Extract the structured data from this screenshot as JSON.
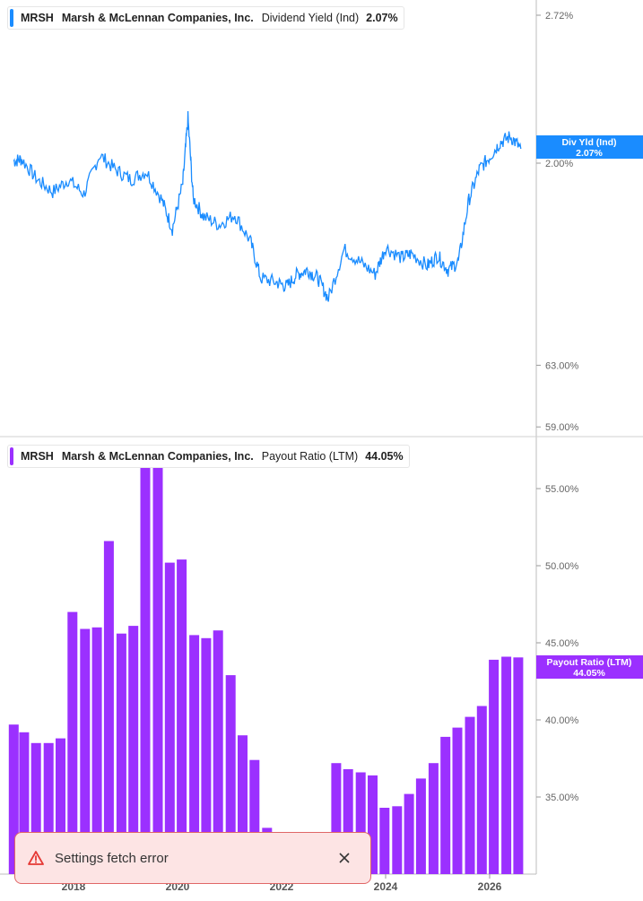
{
  "colors": {
    "yield_line": "#1a8cff",
    "payout_bar": "#9b30ff",
    "axis": "#999999",
    "error": "#e53935"
  },
  "top_legend": {
    "ticker": "MRSH",
    "company": "Marsh & McLennan Companies, Inc.",
    "metric": "Dividend Yield (Ind)",
    "value": "2.07%"
  },
  "bottom_legend": {
    "ticker": "MRSH",
    "company": "Marsh & McLennan Companies, Inc.",
    "metric": "Payout Ratio (LTM)",
    "value": "44.05%"
  },
  "top_badge": {
    "label": "Div Yld (Ind)",
    "value": "2.07%"
  },
  "bottom_badge": {
    "label": "Payout Ratio (LTM)",
    "value": "44.05%"
  },
  "toast": {
    "message": "Settings fetch error",
    "icon": "warning-triangle-icon",
    "close_icon": "close-icon"
  },
  "chart_data": [
    {
      "type": "line",
      "series": [
        {
          "name": "Div Yld (Ind)",
          "x": [
            2016.85,
            2017.0,
            2017.3,
            2017.6,
            2017.9,
            2018.2,
            2018.5,
            2018.8,
            2019.1,
            2019.4,
            2019.7,
            2019.9,
            2020.1,
            2020.2,
            2020.3,
            2020.5,
            2020.8,
            2021.1,
            2021.4,
            2021.6,
            2021.9,
            2022.1,
            2022.3,
            2022.5,
            2022.7,
            2022.9,
            2023.2,
            2023.5,
            2023.8,
            2024.0,
            2024.3,
            2024.5,
            2024.8,
            2025.0,
            2025.2,
            2025.4,
            2025.6,
            2025.8,
            2026.0,
            2026.2,
            2026.4,
            2026.6
          ],
          "y": [
            2.01,
            2.02,
            1.92,
            1.86,
            1.92,
            1.85,
            2.04,
            1.97,
            1.92,
            1.96,
            1.82,
            1.68,
            1.9,
            2.22,
            1.83,
            1.74,
            1.7,
            1.75,
            1.62,
            1.44,
            1.42,
            1.4,
            1.46,
            1.48,
            1.44,
            1.34,
            1.58,
            1.52,
            1.46,
            1.59,
            1.54,
            1.56,
            1.5,
            1.55,
            1.48,
            1.52,
            1.82,
            1.97,
            2.03,
            2.1,
            2.13,
            2.07
          ]
        }
      ],
      "ylabel": "",
      "yticks": [
        "2.72%",
        "2.00%"
      ],
      "xticks": [
        "2018",
        "2020",
        "2022",
        "2024",
        "2026"
      ]
    },
    {
      "type": "bar",
      "x": [
        2016.85,
        2017.05,
        2017.28,
        2017.52,
        2017.75,
        2017.98,
        2018.22,
        2018.45,
        2018.68,
        2018.92,
        2019.15,
        2019.38,
        2019.62,
        2019.85,
        2020.08,
        2020.32,
        2020.55,
        2020.78,
        2021.02,
        2021.25,
        2021.48,
        2021.72,
        2023.05,
        2023.28,
        2023.52,
        2023.75,
        2023.98,
        2024.22,
        2024.45,
        2024.68,
        2024.92,
        2025.15,
        2025.38,
        2025.62,
        2025.85,
        2026.08,
        2026.32,
        2026.55
      ],
      "series": [
        {
          "name": "Payout Ratio (LTM)",
          "values": [
            39.7,
            39.2,
            38.5,
            38.5,
            38.8,
            47.0,
            45.9,
            46.0,
            51.6,
            45.6,
            46.1,
            56.6,
            57.0,
            50.2,
            50.4,
            45.5,
            45.3,
            45.8,
            42.9,
            39.0,
            37.4,
            33.0,
            37.2,
            36.8,
            36.6,
            36.4,
            34.3,
            34.4,
            35.2,
            36.2,
            37.2,
            38.9,
            39.5,
            40.2,
            40.9,
            43.9,
            44.1,
            44.05
          ]
        }
      ],
      "ylabel": "",
      "yticks": [
        "63.00%",
        "59.00%",
        "55.00%",
        "50.00%",
        "45.00%",
        "40.00%",
        "35.00%"
      ],
      "xticks": [
        "2018",
        "2020",
        "2022",
        "2024",
        "2026"
      ]
    }
  ]
}
